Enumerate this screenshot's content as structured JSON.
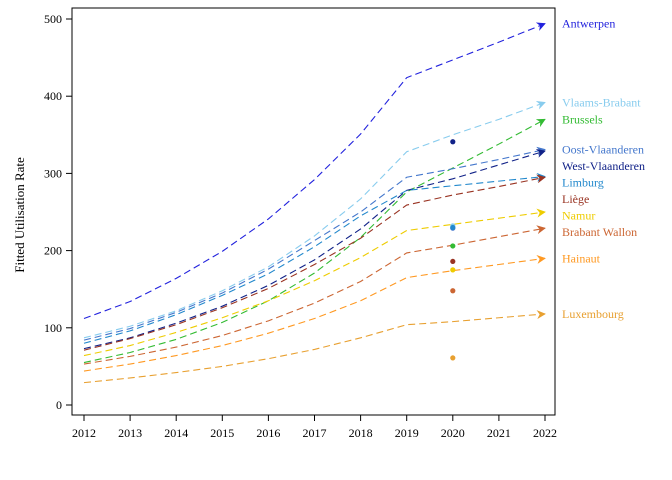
{
  "chart_data": {
    "type": "line",
    "ylabel": "Fitted Utilisation Rate",
    "xlabel": "",
    "x": [
      2012,
      2013,
      2014,
      2015,
      2016,
      2017,
      2018,
      2019,
      2020,
      2021,
      2022
    ],
    "xlim": [
      2012,
      2022
    ],
    "ylim": [
      0,
      500
    ],
    "yticks": [
      0,
      100,
      200,
      300,
      400,
      500
    ],
    "grid": false,
    "legend": "series labels at right end of lines",
    "series": [
      {
        "name": "Antwerpen",
        "color": "#2222dd",
        "values": [
          112,
          134,
          164,
          199,
          241,
          292,
          351,
          424,
          447,
          470,
          494
        ],
        "observed_2020": null
      },
      {
        "name": "Vlaams-Brabant",
        "color": "#88ccee",
        "values": [
          87,
          102,
          122,
          148,
          179,
          219,
          267,
          328,
          350,
          370,
          392
        ],
        "observed_2020": 232
      },
      {
        "name": "Brussels",
        "color": "#33bb33",
        "values": [
          55,
          68,
          85,
          107,
          135,
          171,
          217,
          276,
          307,
          338,
          370
        ],
        "observed_2020": 206
      },
      {
        "name": "Oost-Vlaanderen",
        "color": "#4477cc",
        "values": [
          84,
          99,
          120,
          145,
          176,
          213,
          250,
          295,
          306,
          318,
          331
        ],
        "observed_2020": 229
      },
      {
        "name": "West-Vlaanderen",
        "color": "#112288",
        "values": [
          73,
          87,
          106,
          128,
          155,
          188,
          228,
          278,
          293,
          311,
          329
        ],
        "observed_2020": 341
      },
      {
        "name": "Limburg",
        "color": "#2288cc",
        "values": [
          80,
          96,
          117,
          142,
          170,
          205,
          245,
          278,
          284,
          290,
          296
        ],
        "observed_2020": 230
      },
      {
        "name": "Liège",
        "color": "#993322",
        "values": [
          71,
          86,
          104,
          126,
          151,
          182,
          216,
          259,
          272,
          283,
          295
        ],
        "observed_2020": 186
      },
      {
        "name": "Namur",
        "color": "#eecc00",
        "values": [
          64,
          77,
          94,
          113,
          135,
          161,
          191,
          226,
          234,
          242,
          250
        ],
        "observed_2020": 175
      },
      {
        "name": "Brabant Wallon",
        "color": "#cc6633",
        "values": [
          53,
          63,
          75,
          90,
          109,
          132,
          160,
          197,
          207,
          218,
          229
        ],
        "observed_2020": 148
      },
      {
        "name": "Hainaut",
        "color": "#ff9922",
        "values": [
          44,
          53,
          64,
          77,
          93,
          112,
          135,
          165,
          174,
          182,
          190
        ],
        "observed_2020": null
      },
      {
        "name": "Luxembourg",
        "color": "#e8a030",
        "values": [
          29,
          35,
          42,
          50,
          60,
          72,
          87,
          104,
          108,
          113,
          118
        ],
        "observed_2020": 61
      }
    ],
    "label_order": [
      "Antwerpen",
      "Vlaams-Brabant",
      "Brussels",
      "Oost-Vlaanderen",
      "West-Vlaanderen",
      "Limburg",
      "Liège",
      "Namur",
      "Brabant Wallon",
      "Hainaut",
      "Luxembourg"
    ]
  }
}
